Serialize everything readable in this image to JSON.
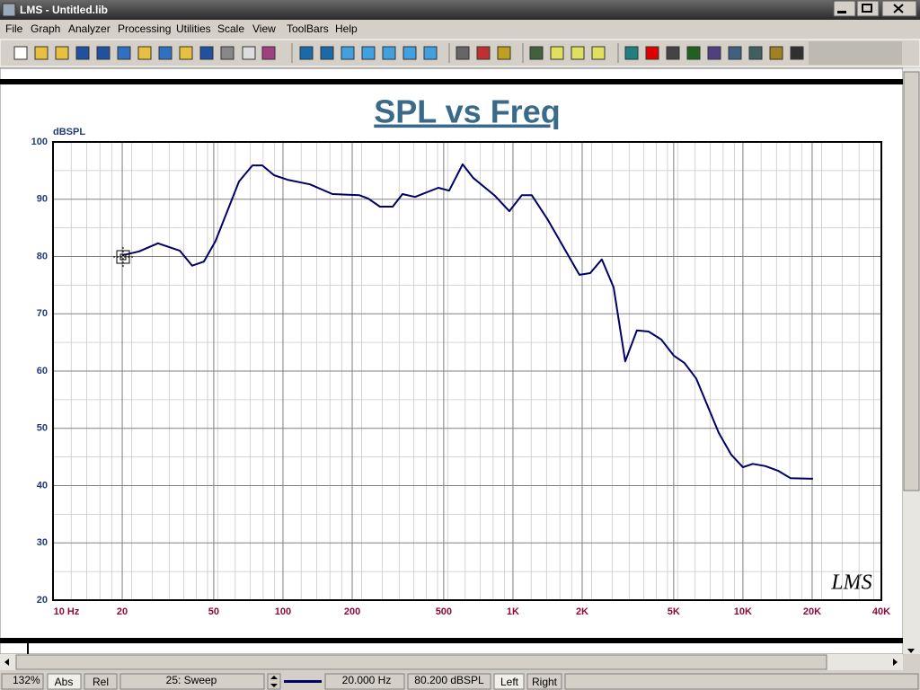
{
  "window": {
    "title": "LMS - Untitled.lib"
  },
  "menu": [
    "File",
    "Graph",
    "Analyzer",
    "Processing",
    "Utilities",
    "Scale",
    "View",
    "ToolBars",
    "Help"
  ],
  "chart_data": {
    "type": "line",
    "title": "SPL vs Freq",
    "y_label": "dBSPL",
    "logo": "LMS",
    "xscale": "log",
    "x": [
      20,
      23.7,
      28.6,
      35.6,
      40.3,
      45.3,
      50.9,
      64.4,
      73.7,
      81.3,
      91.4,
      104.7,
      131,
      164,
      215,
      235,
      264,
      300,
      331,
      375,
      474,
      528,
      604,
      673,
      835,
      964,
      1093,
      1208,
      1419,
      1945,
      2167,
      2436,
      2740,
      3078,
      3459,
      3890,
      4413,
      5003,
      5572,
      6265,
      7850,
      8900,
      10000,
      11040,
      12530,
      14200,
      16100,
      20170
    ],
    "values": [
      80.2,
      80.9,
      82.3,
      81,
      78.4,
      79.1,
      82.7,
      93.1,
      95.9,
      95.9,
      94.2,
      93.4,
      92.6,
      90.9,
      90.7,
      90.1,
      88.7,
      88.7,
      90.9,
      90.4,
      92,
      91.5,
      96.1,
      93.7,
      90.6,
      87.9,
      90.7,
      90.7,
      86.4,
      76.8,
      77.1,
      79.5,
      74.6,
      61.7,
      67.1,
      66.9,
      65.5,
      62.7,
      61.4,
      58.7,
      49.2,
      45.4,
      43.2,
      43.8,
      43.4,
      42.6,
      41.3,
      41.2
    ],
    "color": "#000066",
    "xlim": [
      10,
      40000
    ],
    "xticks": [
      {
        "value": 10,
        "label": "10 Hz"
      },
      20,
      50,
      100,
      200,
      500,
      {
        "value": 1000,
        "label": "1K"
      },
      {
        "value": 2000,
        "label": "2K"
      },
      {
        "value": 5000,
        "label": "5K"
      },
      {
        "value": 10000,
        "label": "10K"
      },
      {
        "value": 20000,
        "label": "20K"
      },
      {
        "value": 40000,
        "label": "40K"
      }
    ],
    "ylim": [
      20,
      100
    ],
    "yticks": [
      20,
      30,
      40,
      50,
      60,
      70,
      80,
      90,
      100
    ],
    "grid": true
  },
  "status_bar": {
    "zoom": "132%",
    "abs": "Abs",
    "rel": "Rel",
    "curve": "25: Sweep",
    "frequency": "20.000 Hz",
    "level": "80.200 dBSPL",
    "left": "Left",
    "right": "Right"
  }
}
